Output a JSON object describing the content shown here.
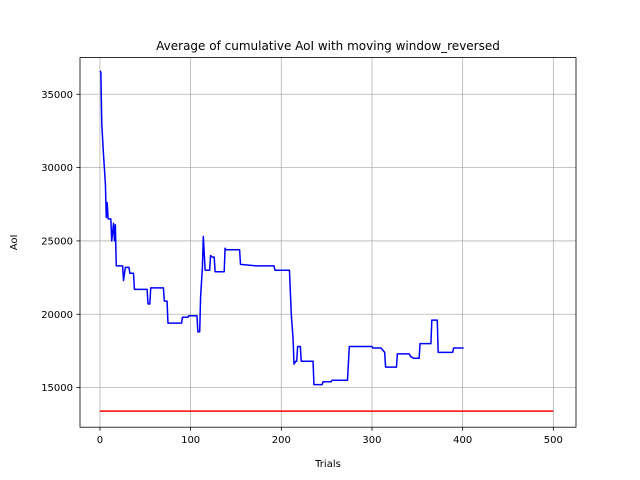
{
  "chart_data": {
    "type": "line",
    "title": "Average of cumulative AoI with moving window_reversed",
    "xlabel": "Trials",
    "ylabel": "AoI",
    "xlim": [
      -22,
      525
    ],
    "ylim": [
      12300,
      37500
    ],
    "xticks": [
      0,
      100,
      200,
      300,
      400,
      500
    ],
    "yticks": [
      15000,
      20000,
      25000,
      30000,
      35000
    ],
    "grid": true,
    "series": [
      {
        "color": "#0000ff",
        "points": [
          [
            0,
            36600
          ],
          [
            1,
            36500
          ],
          [
            2,
            33000
          ],
          [
            4,
            30800
          ],
          [
            6,
            28900
          ],
          [
            7,
            26600
          ],
          [
            8,
            27600
          ],
          [
            9,
            26500
          ],
          [
            12,
            26500
          ],
          [
            13,
            25000
          ],
          [
            15,
            26200
          ],
          [
            16,
            25000
          ],
          [
            17,
            26100
          ],
          [
            18,
            23300
          ],
          [
            25,
            23300
          ],
          [
            26,
            22300
          ],
          [
            28,
            23200
          ],
          [
            32,
            23200
          ],
          [
            33,
            22800
          ],
          [
            37,
            22800
          ],
          [
            38,
            21700
          ],
          [
            52,
            21700
          ],
          [
            53,
            20700
          ],
          [
            55,
            20700
          ],
          [
            56,
            21800
          ],
          [
            70,
            21800
          ],
          [
            71,
            20900
          ],
          [
            74,
            20900
          ],
          [
            75,
            19400
          ],
          [
            90,
            19400
          ],
          [
            91,
            19800
          ],
          [
            97,
            19800
          ],
          [
            98,
            19900
          ],
          [
            107,
            19900
          ],
          [
            108,
            18800
          ],
          [
            110,
            18800
          ],
          [
            111,
            21200
          ],
          [
            113,
            23200
          ],
          [
            114,
            25300
          ],
          [
            116,
            23000
          ],
          [
            121,
            23000
          ],
          [
            122,
            24000
          ],
          [
            124,
            23900
          ],
          [
            126,
            23900
          ],
          [
            127,
            22900
          ],
          [
            137,
            22900
          ],
          [
            138,
            24500
          ],
          [
            139,
            24400
          ],
          [
            154,
            24400
          ],
          [
            155,
            23400
          ],
          [
            172,
            23300
          ],
          [
            192,
            23300
          ],
          [
            193,
            23000
          ],
          [
            209,
            23000
          ],
          [
            211,
            20000
          ],
          [
            213,
            18300
          ],
          [
            214,
            16600
          ],
          [
            216,
            16800
          ],
          [
            217,
            16800
          ],
          [
            218,
            17800
          ],
          [
            221,
            17800
          ],
          [
            222,
            16800
          ],
          [
            235,
            16800
          ],
          [
            236,
            15200
          ],
          [
            245,
            15200
          ],
          [
            246,
            15400
          ],
          [
            255,
            15400
          ],
          [
            256,
            15500
          ],
          [
            273,
            15500
          ],
          [
            275,
            17800
          ],
          [
            300,
            17800
          ],
          [
            301,
            17700
          ],
          [
            310,
            17700
          ],
          [
            314,
            17400
          ],
          [
            315,
            16400
          ],
          [
            327,
            16400
          ],
          [
            328,
            17300
          ],
          [
            341,
            17300
          ],
          [
            343,
            17100
          ],
          [
            346,
            17000
          ],
          [
            352,
            17000
          ],
          [
            353,
            18000
          ],
          [
            365,
            18000
          ],
          [
            366,
            19600
          ],
          [
            372,
            19600
          ],
          [
            373,
            17400
          ],
          [
            389,
            17400
          ],
          [
            390,
            17700
          ],
          [
            401,
            17700
          ]
        ]
      },
      {
        "color": "#ff0000",
        "points": [
          [
            0,
            13400
          ],
          [
            500,
            13400
          ]
        ]
      }
    ]
  }
}
